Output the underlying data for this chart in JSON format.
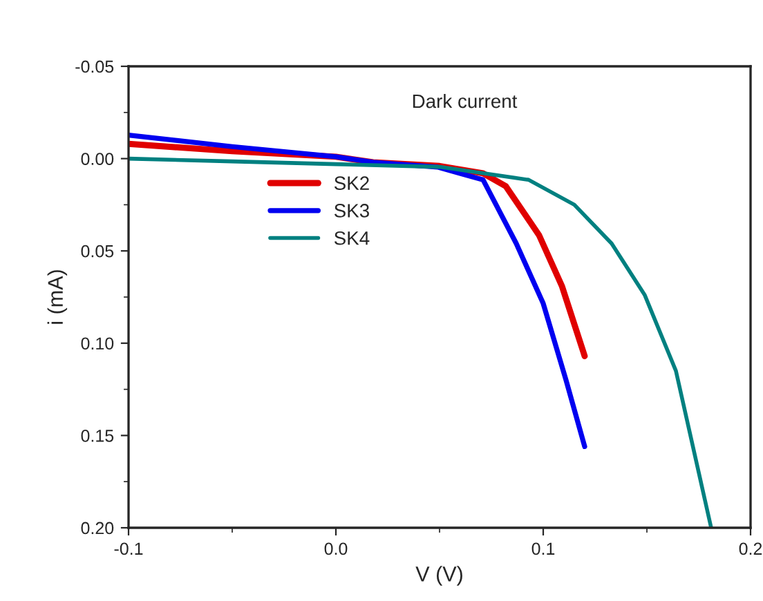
{
  "chart_data": {
    "type": "line",
    "xlabel": "V (V)",
    "ylabel": "i (mA)",
    "annotations": [
      "Dark current"
    ],
    "xlim": [
      -0.1,
      0.2
    ],
    "xticks": [
      {
        "value": -0.1,
        "label": "-0.1"
      },
      {
        "value": 0.0,
        "label": "0.0"
      },
      0.1,
      0.2
    ],
    "ylim": [
      0.2,
      -0.05
    ],
    "yticks": [
      {
        "value": -0.05,
        "label": "-0.05"
      },
      {
        "value": 0.0,
        "label": "0.00"
      },
      0.05,
      {
        "value": 0.1,
        "label": "0.10"
      },
      0.15,
      {
        "value": 0.2,
        "label": "0.20"
      }
    ],
    "grid": false,
    "legend": "top left",
    "marker": "none",
    "line_style": "solid",
    "series": [
      {
        "name": "SK2",
        "color": "#e00000",
        "x": [
          -0.1,
          -0.05,
          0.0,
          0.018,
          0.05,
          0.071,
          0.082,
          0.098,
          0.109,
          0.12
        ],
        "values": [
          -0.008,
          -0.004,
          -0.001,
          0.002,
          0.004,
          0.008,
          0.015,
          0.0415,
          0.069,
          0.107
        ]
      },
      {
        "name": "SK3",
        "color": "#0000f0",
        "x": [
          -0.1,
          -0.05,
          0.0,
          0.018,
          0.049,
          0.071,
          0.087,
          0.1,
          0.111,
          0.12
        ],
        "values": [
          -0.0127,
          -0.0065,
          -0.001,
          0.002,
          0.0046,
          0.0115,
          0.046,
          0.0785,
          0.12,
          0.156
        ]
      },
      {
        "name": "SK4",
        "color": "#008080",
        "x": [
          -0.1,
          -0.05,
          0.0,
          0.05,
          0.093,
          0.115,
          0.133,
          0.149,
          0.164,
          0.181
        ],
        "values": [
          0.0,
          0.0015,
          0.003,
          0.0045,
          0.0115,
          0.025,
          0.046,
          0.074,
          0.115,
          0.2
        ]
      }
    ]
  }
}
